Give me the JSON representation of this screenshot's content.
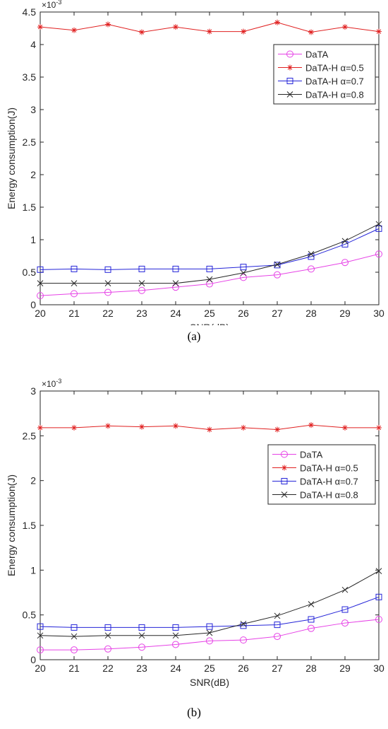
{
  "chart_data": [
    {
      "type": "line",
      "caption": "(a)",
      "xlabel": "SNR(dB)",
      "ylabel": "Energy consumption(J)",
      "exponent_label": "×10",
      "exponent_power": "-3",
      "x": [
        20,
        21,
        22,
        23,
        24,
        25,
        26,
        27,
        28,
        29,
        30
      ],
      "xlim": [
        20,
        30
      ],
      "ylim": [
        0,
        4.5
      ],
      "yticks": [
        0,
        0.5,
        1,
        1.5,
        2,
        2.5,
        3,
        3.5,
        4,
        4.5
      ],
      "ytick_labels": [
        "0",
        "0.5",
        "1",
        "1.5",
        "2",
        "2.5",
        "3",
        "3.5",
        "4",
        "4.5"
      ],
      "legend_position": "top-right",
      "series": [
        {
          "name": "DaTA",
          "color": "#e642e6",
          "marker": "circle",
          "values": [
            0.14,
            0.17,
            0.19,
            0.22,
            0.27,
            0.32,
            0.42,
            0.46,
            0.55,
            0.65,
            0.78
          ]
        },
        {
          "name": "DaTA-H α=0.5",
          "color": "#e02020",
          "marker": "asterisk",
          "values": [
            4.27,
            4.22,
            4.31,
            4.19,
            4.27,
            4.2,
            4.2,
            4.34,
            4.19,
            4.27,
            4.2
          ]
        },
        {
          "name": "DaTA-H α=0.7",
          "color": "#2424d8",
          "marker": "square",
          "values": [
            0.54,
            0.55,
            0.54,
            0.55,
            0.55,
            0.55,
            0.58,
            0.61,
            0.74,
            0.93,
            1.17
          ]
        },
        {
          "name": "DaTA-H α=0.8",
          "color": "#262626",
          "marker": "x",
          "values": [
            0.33,
            0.33,
            0.33,
            0.33,
            0.33,
            0.39,
            0.49,
            0.62,
            0.78,
            0.98,
            1.24
          ]
        }
      ]
    },
    {
      "type": "line",
      "caption": "(b)",
      "xlabel": "SNR(dB)",
      "ylabel": "Energy consumption(J)",
      "exponent_label": "×10",
      "exponent_power": "-3",
      "x": [
        20,
        21,
        22,
        23,
        24,
        25,
        26,
        27,
        28,
        29,
        30
      ],
      "xlim": [
        20,
        30
      ],
      "ylim": [
        0,
        3
      ],
      "yticks": [
        0,
        0.5,
        1,
        1.5,
        2,
        2.5,
        3
      ],
      "ytick_labels": [
        "0",
        "0.5",
        "1",
        "1.5",
        "2",
        "2.5",
        "3"
      ],
      "legend_position": "top-right",
      "series": [
        {
          "name": "DaTA",
          "color": "#e642e6",
          "marker": "circle",
          "values": [
            0.11,
            0.11,
            0.12,
            0.14,
            0.17,
            0.21,
            0.22,
            0.26,
            0.35,
            0.41,
            0.45
          ]
        },
        {
          "name": "DaTA-H α=0.5",
          "color": "#e02020",
          "marker": "asterisk",
          "values": [
            2.59,
            2.59,
            2.61,
            2.6,
            2.61,
            2.57,
            2.59,
            2.57,
            2.62,
            2.59,
            2.59
          ]
        },
        {
          "name": "DaTA-H α=0.7",
          "color": "#2424d8",
          "marker": "square",
          "values": [
            0.37,
            0.36,
            0.36,
            0.36,
            0.36,
            0.37,
            0.38,
            0.39,
            0.45,
            0.56,
            0.7
          ]
        },
        {
          "name": "DaTA-H α=0.8",
          "color": "#262626",
          "marker": "x",
          "values": [
            0.27,
            0.26,
            0.27,
            0.27,
            0.27,
            0.3,
            0.4,
            0.49,
            0.62,
            0.78,
            0.99
          ]
        }
      ]
    }
  ]
}
